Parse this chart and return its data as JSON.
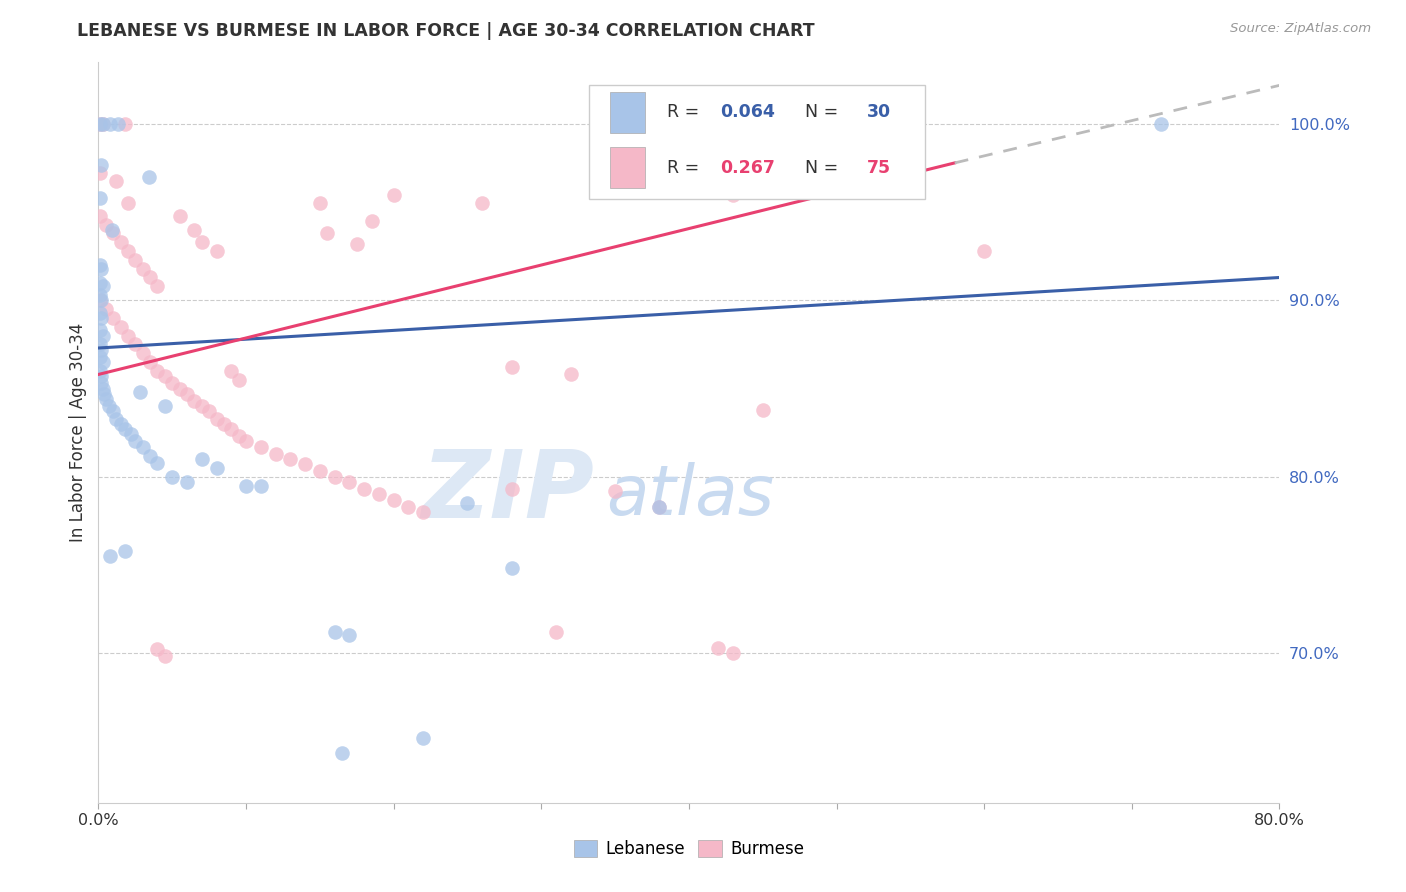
{
  "title": "LEBANESE VS BURMESE IN LABOR FORCE | AGE 30-34 CORRELATION CHART",
  "source": "Source: ZipAtlas.com",
  "ylabel": "In Labor Force | Age 30-34",
  "xlim": [
    0.0,
    0.8
  ],
  "ylim": [
    0.615,
    1.035
  ],
  "yticks": [
    0.7,
    0.8,
    0.9,
    1.0
  ],
  "ytick_labels": [
    "70.0%",
    "80.0%",
    "90.0%",
    "100.0%"
  ],
  "xticks": [
    0.0,
    0.1,
    0.2,
    0.3,
    0.4,
    0.5,
    0.6,
    0.7,
    0.8
  ],
  "xtick_labels": [
    "0.0%",
    "",
    "",
    "",
    "",
    "",
    "",
    "",
    "80.0%"
  ],
  "watermark_zip": "ZIP",
  "watermark_atlas": "atlas",
  "blue_color": "#a8c4e8",
  "pink_color": "#f5b8c8",
  "blue_line_color": "#3a5fa8",
  "pink_line_color": "#e84070",
  "grid_color": "#cccccc",
  "blue_scatter": [
    [
      0.001,
      1.0
    ],
    [
      0.003,
      1.0
    ],
    [
      0.008,
      1.0
    ],
    [
      0.013,
      1.0
    ],
    [
      0.002,
      0.977
    ],
    [
      0.034,
      0.97
    ],
    [
      0.001,
      0.958
    ],
    [
      0.009,
      0.94
    ],
    [
      0.001,
      0.92
    ],
    [
      0.002,
      0.918
    ],
    [
      0.001,
      0.91
    ],
    [
      0.003,
      0.908
    ],
    [
      0.001,
      0.903
    ],
    [
      0.002,
      0.9
    ],
    [
      0.001,
      0.893
    ],
    [
      0.002,
      0.89
    ],
    [
      0.001,
      0.883
    ],
    [
      0.003,
      0.88
    ],
    [
      0.001,
      0.875
    ],
    [
      0.002,
      0.872
    ],
    [
      0.001,
      0.868
    ],
    [
      0.003,
      0.865
    ],
    [
      0.001,
      0.86
    ],
    [
      0.002,
      0.857
    ],
    [
      0.002,
      0.853
    ],
    [
      0.003,
      0.85
    ],
    [
      0.004,
      0.847
    ],
    [
      0.005,
      0.844
    ],
    [
      0.007,
      0.84
    ],
    [
      0.01,
      0.837
    ],
    [
      0.012,
      0.833
    ],
    [
      0.015,
      0.83
    ],
    [
      0.018,
      0.827
    ],
    [
      0.022,
      0.824
    ],
    [
      0.025,
      0.82
    ],
    [
      0.03,
      0.817
    ],
    [
      0.035,
      0.812
    ],
    [
      0.04,
      0.808
    ],
    [
      0.05,
      0.8
    ],
    [
      0.06,
      0.797
    ],
    [
      0.1,
      0.795
    ],
    [
      0.11,
      0.795
    ],
    [
      0.028,
      0.848
    ],
    [
      0.045,
      0.84
    ],
    [
      0.008,
      0.755
    ],
    [
      0.018,
      0.758
    ],
    [
      0.07,
      0.81
    ],
    [
      0.08,
      0.805
    ],
    [
      0.25,
      0.785
    ],
    [
      0.28,
      0.748
    ],
    [
      0.16,
      0.712
    ],
    [
      0.22,
      0.652
    ],
    [
      0.165,
      0.643
    ],
    [
      0.38,
      0.783
    ],
    [
      0.72,
      1.0
    ],
    [
      0.17,
      0.71
    ]
  ],
  "pink_scatter": [
    [
      0.001,
      1.0
    ],
    [
      0.003,
      1.0
    ],
    [
      0.018,
      1.0
    ],
    [
      0.001,
      0.972
    ],
    [
      0.012,
      0.968
    ],
    [
      0.02,
      0.955
    ],
    [
      0.001,
      0.948
    ],
    [
      0.005,
      0.943
    ],
    [
      0.01,
      0.938
    ],
    [
      0.015,
      0.933
    ],
    [
      0.02,
      0.928
    ],
    [
      0.025,
      0.923
    ],
    [
      0.03,
      0.918
    ],
    [
      0.035,
      0.913
    ],
    [
      0.04,
      0.908
    ],
    [
      0.001,
      0.9
    ],
    [
      0.005,
      0.895
    ],
    [
      0.01,
      0.89
    ],
    [
      0.015,
      0.885
    ],
    [
      0.02,
      0.88
    ],
    [
      0.025,
      0.875
    ],
    [
      0.03,
      0.87
    ],
    [
      0.035,
      0.865
    ],
    [
      0.04,
      0.86
    ],
    [
      0.045,
      0.857
    ],
    [
      0.05,
      0.853
    ],
    [
      0.055,
      0.85
    ],
    [
      0.06,
      0.847
    ],
    [
      0.065,
      0.843
    ],
    [
      0.07,
      0.84
    ],
    [
      0.075,
      0.837
    ],
    [
      0.08,
      0.833
    ],
    [
      0.085,
      0.83
    ],
    [
      0.09,
      0.827
    ],
    [
      0.095,
      0.823
    ],
    [
      0.1,
      0.82
    ],
    [
      0.11,
      0.817
    ],
    [
      0.12,
      0.813
    ],
    [
      0.13,
      0.81
    ],
    [
      0.14,
      0.807
    ],
    [
      0.15,
      0.803
    ],
    [
      0.16,
      0.8
    ],
    [
      0.17,
      0.797
    ],
    [
      0.18,
      0.793
    ],
    [
      0.19,
      0.79
    ],
    [
      0.2,
      0.787
    ],
    [
      0.21,
      0.783
    ],
    [
      0.22,
      0.78
    ],
    [
      0.055,
      0.948
    ],
    [
      0.065,
      0.94
    ],
    [
      0.07,
      0.933
    ],
    [
      0.08,
      0.928
    ],
    [
      0.09,
      0.86
    ],
    [
      0.095,
      0.855
    ],
    [
      0.28,
      0.862
    ],
    [
      0.32,
      0.858
    ],
    [
      0.43,
      0.96
    ],
    [
      0.6,
      0.928
    ],
    [
      0.45,
      0.838
    ],
    [
      0.28,
      0.793
    ],
    [
      0.35,
      0.792
    ],
    [
      0.38,
      0.783
    ],
    [
      0.31,
      0.712
    ],
    [
      0.42,
      0.703
    ],
    [
      0.43,
      0.7
    ],
    [
      0.2,
      0.96
    ],
    [
      0.26,
      0.955
    ],
    [
      0.15,
      0.955
    ],
    [
      0.185,
      0.945
    ],
    [
      0.155,
      0.938
    ],
    [
      0.175,
      0.932
    ],
    [
      0.04,
      0.702
    ],
    [
      0.045,
      0.698
    ]
  ],
  "blue_trendline": [
    [
      0.0,
      0.873
    ],
    [
      0.8,
      0.913
    ]
  ],
  "pink_trendline_solid": [
    [
      0.0,
      0.858
    ],
    [
      0.58,
      0.978
    ]
  ],
  "pink_trendline_dashed": [
    [
      0.58,
      0.978
    ],
    [
      0.8,
      1.022
    ]
  ]
}
